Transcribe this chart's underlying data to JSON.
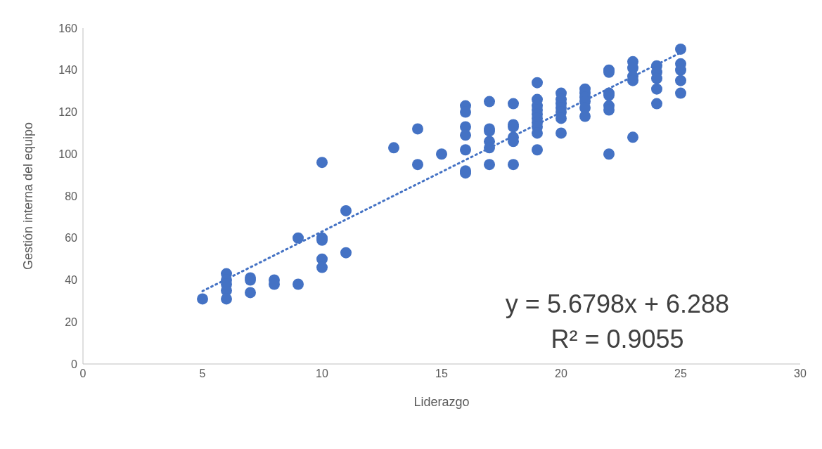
{
  "chart_data": {
    "type": "scatter",
    "xlabel": "Liderazgo",
    "ylabel": "Gestión interna del equipo",
    "xlim": [
      0,
      30
    ],
    "xticks": [
      0,
      5,
      10,
      15,
      20,
      25,
      30
    ],
    "ylim": [
      0,
      160
    ],
    "yticks": [
      0,
      20,
      40,
      60,
      80,
      100,
      120,
      140,
      160
    ],
    "grid": false,
    "legend": false,
    "marker": "circle",
    "series": [
      {
        "color": "#4472c4",
        "x": [
          5,
          6,
          6,
          6,
          6,
          6,
          7,
          7,
          7,
          8,
          8,
          9,
          9,
          10,
          10,
          10,
          10,
          10,
          11,
          11,
          13,
          14,
          14,
          15,
          16,
          16,
          16,
          16,
          16,
          16,
          16,
          17,
          17,
          17,
          17,
          17,
          17,
          18,
          18,
          18,
          18,
          18,
          18,
          19,
          19,
          19,
          19,
          19,
          19,
          19,
          19,
          19,
          19,
          20,
          20,
          20,
          20,
          20,
          20,
          20,
          21,
          21,
          21,
          21,
          21,
          21,
          22,
          22,
          22,
          22,
          22,
          22,
          22,
          23,
          23,
          23,
          23,
          23,
          24,
          24,
          24,
          24,
          24,
          25,
          25,
          25,
          25,
          25
        ],
        "values": [
          31,
          43,
          40,
          38,
          35,
          31,
          41,
          40,
          34,
          40,
          38,
          60,
          38,
          96,
          60,
          59,
          50,
          46,
          73,
          53,
          103,
          112,
          95,
          100,
          123,
          120,
          113,
          109,
          102,
          92,
          91,
          125,
          112,
          111,
          106,
          103,
          95,
          124,
          114,
          113,
          108,
          106,
          95,
          134,
          126,
          123,
          121,
          119,
          117,
          115,
          113,
          110,
          102,
          129,
          126,
          124,
          122,
          120,
          117,
          110,
          131,
          129,
          127,
          125,
          122,
          118,
          140,
          139,
          129,
          128,
          123,
          121,
          100,
          144,
          141,
          137,
          135,
          108,
          142,
          139,
          136,
          131,
          124,
          150,
          143,
          140,
          135,
          129
        ]
      },
      {
        "type": "line",
        "color": "#4472c4",
        "line_style": "dotted",
        "marker": "none",
        "x": [
          5,
          25
        ],
        "values": [
          34.7,
          148.3
        ]
      }
    ],
    "annotations": [
      "y = 5.6798x + 6.288",
      "R² = 0.9055"
    ]
  }
}
